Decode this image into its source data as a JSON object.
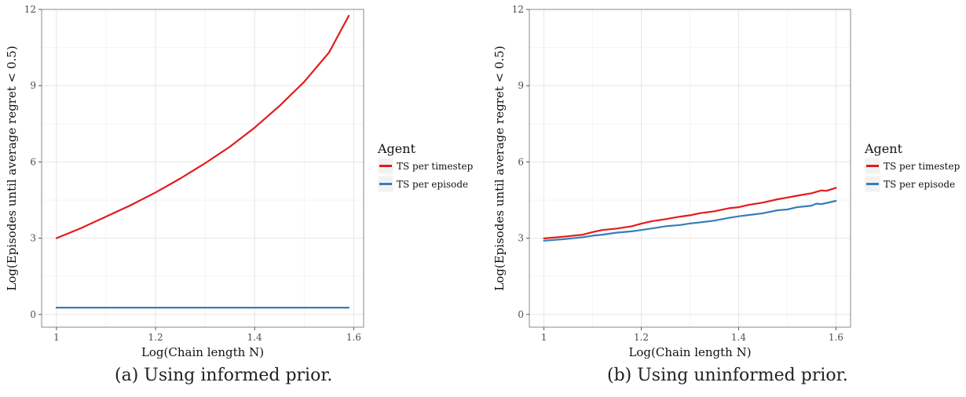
{
  "chart_data": [
    {
      "type": "line",
      "caption": "(a) Using informed prior.",
      "xlabel": "Log(Chain length N)",
      "ylabel": "Log(Episodes until average regret < 0.5)",
      "xlim": [
        0.97,
        1.62
      ],
      "ylim": [
        -0.5,
        12
      ],
      "xticks": [
        1,
        1.2,
        1.4,
        1.6
      ],
      "xtick_labels": [
        "1",
        "1.2",
        "1.4",
        "1.6"
      ],
      "yticks": [
        0,
        3,
        6,
        9,
        12
      ],
      "ytick_labels": [
        "0",
        "3",
        "6",
        "9",
        "12"
      ],
      "grid": true,
      "legend": {
        "title": "Agent",
        "placement": "right",
        "entries": [
          "TS per timestep",
          "TS per episode"
        ]
      },
      "series": [
        {
          "name": "TS per timestep",
          "color": "#e41a1c",
          "x": [
            1.0,
            1.05,
            1.1,
            1.15,
            1.2,
            1.25,
            1.3,
            1.35,
            1.4,
            1.45,
            1.5,
            1.55,
            1.59
          ],
          "y": [
            3.0,
            3.4,
            3.85,
            4.3,
            4.8,
            5.35,
            5.95,
            6.6,
            7.35,
            8.2,
            9.15,
            10.3,
            11.75
          ]
        },
        {
          "name": "TS per episode",
          "color": "#377eb8",
          "x": [
            1.0,
            1.59
          ],
          "y": [
            0.27,
            0.27
          ]
        }
      ]
    },
    {
      "type": "line",
      "caption": "(b) Using uninformed prior.",
      "xlabel": "Log(Chain length N)",
      "ylabel": "Log(Episodes until average regret < 0.5)",
      "xlim": [
        0.97,
        1.63
      ],
      "ylim": [
        -0.5,
        12
      ],
      "xticks": [
        1,
        1.2,
        1.4,
        1.6
      ],
      "xtick_labels": [
        "1",
        "1.2",
        "1.4",
        "1.6"
      ],
      "yticks": [
        0,
        3,
        6,
        9,
        12
      ],
      "ytick_labels": [
        "0",
        "3",
        "6",
        "9",
        "12"
      ],
      "grid": true,
      "legend": {
        "title": "Agent",
        "placement": "right",
        "entries": [
          "TS per timestep",
          "TS per episode"
        ]
      },
      "series": [
        {
          "name": "TS per timestep",
          "color": "#e41a1c",
          "x": [
            1.0,
            1.04,
            1.08,
            1.1,
            1.12,
            1.15,
            1.18,
            1.2,
            1.22,
            1.25,
            1.28,
            1.3,
            1.32,
            1.35,
            1.38,
            1.4,
            1.42,
            1.45,
            1.48,
            1.5,
            1.52,
            1.55,
            1.57,
            1.58,
            1.6
          ],
          "y": [
            2.99,
            3.06,
            3.14,
            3.24,
            3.32,
            3.38,
            3.47,
            3.57,
            3.66,
            3.75,
            3.85,
            3.9,
            3.98,
            4.06,
            4.18,
            4.22,
            4.31,
            4.4,
            4.53,
            4.6,
            4.67,
            4.77,
            4.88,
            4.86,
            4.98
          ]
        },
        {
          "name": "TS per episode",
          "color": "#377eb8",
          "x": [
            1.0,
            1.04,
            1.08,
            1.1,
            1.12,
            1.15,
            1.18,
            1.2,
            1.22,
            1.25,
            1.28,
            1.3,
            1.32,
            1.35,
            1.38,
            1.4,
            1.42,
            1.45,
            1.48,
            1.5,
            1.52,
            1.55,
            1.56,
            1.57,
            1.6
          ],
          "y": [
            2.9,
            2.96,
            3.04,
            3.1,
            3.14,
            3.22,
            3.27,
            3.32,
            3.38,
            3.47,
            3.52,
            3.58,
            3.62,
            3.69,
            3.8,
            3.86,
            3.91,
            3.98,
            4.1,
            4.13,
            4.22,
            4.28,
            4.36,
            4.34,
            4.47
          ]
        }
      ]
    }
  ]
}
